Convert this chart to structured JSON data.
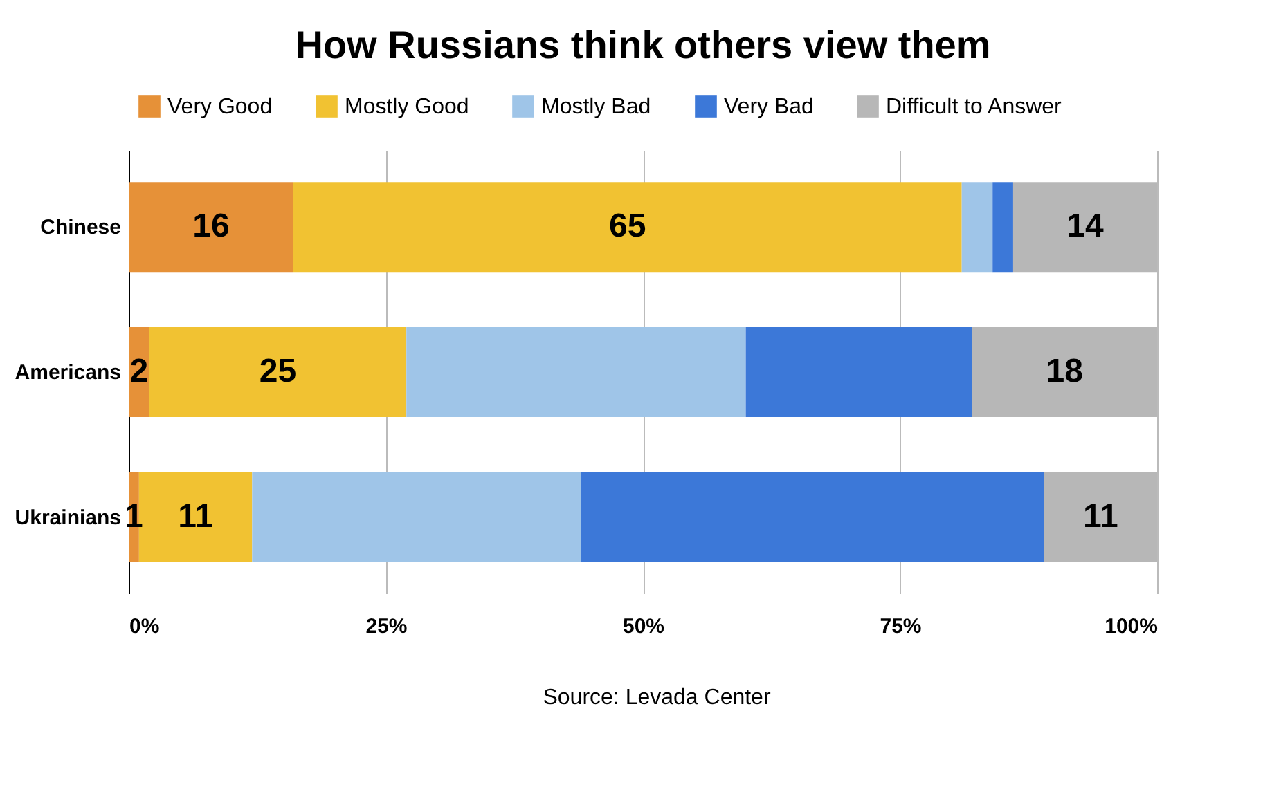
{
  "chart_data": {
    "type": "bar",
    "orientation": "horizontal",
    "stacked": true,
    "title": "How Russians think others view them",
    "categories": [
      "Chinese",
      "Americans",
      "Ukrainians"
    ],
    "series": [
      {
        "name": "Very Good",
        "color": "#e69138",
        "values": [
          16,
          2,
          1
        ],
        "value_labels": [
          "16",
          "2",
          "1"
        ]
      },
      {
        "name": "Mostly Good",
        "color": "#f1c232",
        "values": [
          65,
          25,
          11
        ],
        "value_labels": [
          "65",
          "25",
          "11"
        ]
      },
      {
        "name": "Mostly Bad",
        "color": "#9fc5e8",
        "values": [
          3,
          33,
          32
        ],
        "value_labels": [
          null,
          null,
          null
        ]
      },
      {
        "name": "Very Bad",
        "color": "#3c78d8",
        "values": [
          2,
          22,
          45
        ],
        "value_labels": [
          null,
          null,
          null
        ]
      },
      {
        "name": "Difficult to Answer",
        "color": "#b7b7b7",
        "values": [
          14,
          18,
          11
        ],
        "value_labels": [
          "14",
          "18",
          "11"
        ]
      }
    ],
    "xlim": [
      0,
      100
    ],
    "xticks": [
      {
        "value": 0,
        "label": "0%"
      },
      {
        "value": 25,
        "label": "25%"
      },
      {
        "value": 50,
        "label": "50%"
      },
      {
        "value": 75,
        "label": "75%"
      },
      {
        "value": 100,
        "label": "100%"
      }
    ],
    "grid": "x",
    "legend": "top",
    "annotations": [
      "Source: Levada Center"
    ]
  }
}
